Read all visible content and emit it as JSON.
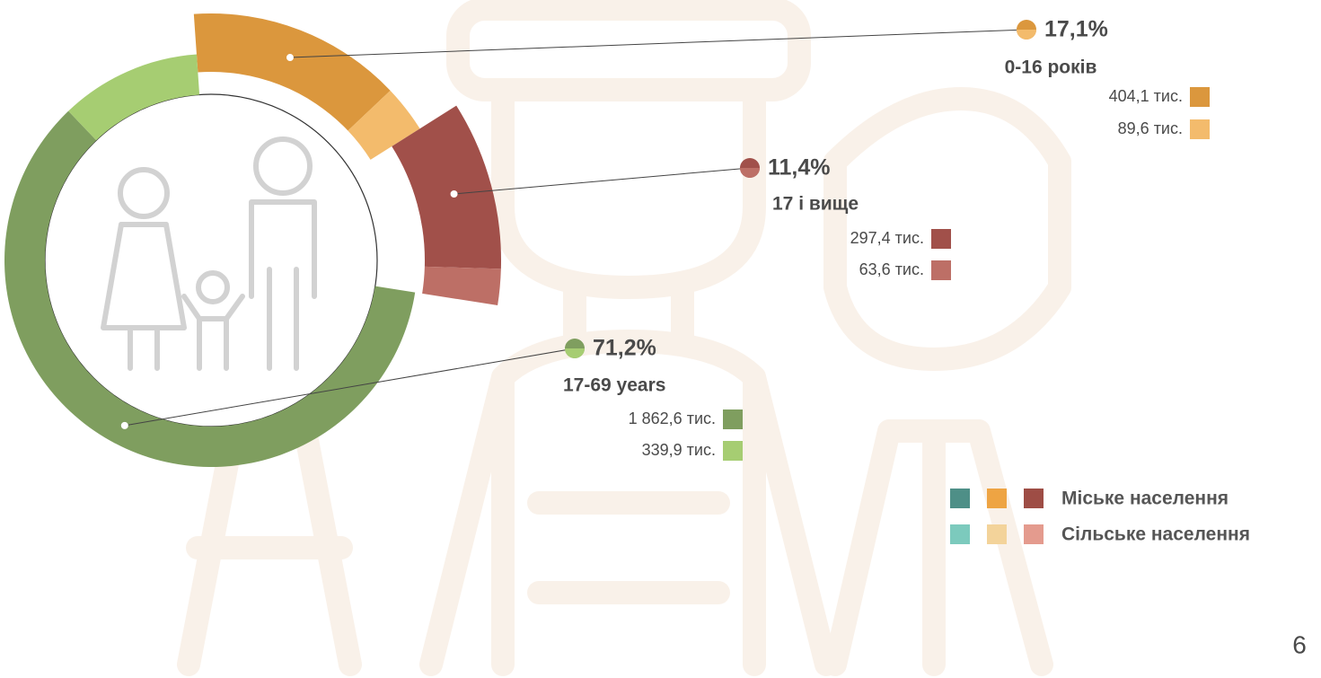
{
  "page_number": "6",
  "chart_data": {
    "type": "exploded-donut",
    "groups": [
      {
        "name": "0-16 років",
        "percent": 17.1,
        "percent_label": "17,1%",
        "values": [
          404.1,
          89.6
        ],
        "value_labels": [
          "404,1 тис.",
          "89,6 тис."
        ],
        "colors": [
          "#db973d",
          "#f3bb6c"
        ]
      },
      {
        "name": "17 і вище",
        "percent": 11.4,
        "percent_label": "11,4%",
        "values": [
          297.4,
          63.6
        ],
        "value_labels": [
          "297,4 тис.",
          "63,6 тис."
        ],
        "colors": [
          "#a1504a",
          "#bd6f66"
        ]
      },
      {
        "name": "17-69 years",
        "percent": 71.2,
        "percent_label": "71,2%",
        "values": [
          1862.6,
          339.9
        ],
        "value_labels": [
          "1 862,6 тис.",
          "339,9 тис."
        ],
        "colors": [
          "#7f9e5f",
          "#a6cd72"
        ]
      }
    ],
    "legend": [
      {
        "name": "Міське населення",
        "colors": [
          "#4e8f87",
          "#eea443",
          "#9e4d45"
        ]
      },
      {
        "name": "Сільське населення",
        "colors": [
          "#7ccabd",
          "#f3d39a",
          "#e49b8e"
        ]
      }
    ]
  }
}
